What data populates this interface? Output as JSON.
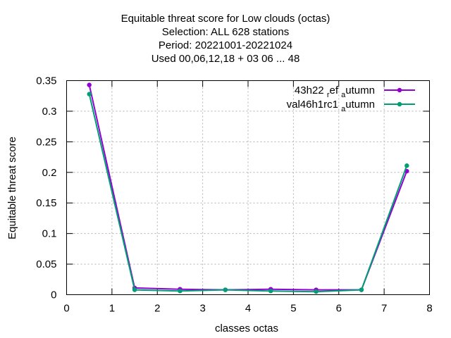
{
  "chart_data": {
    "type": "line",
    "title_lines": [
      "Equitable threat score  for Low clouds (octas)",
      "Selection: ALL     628 stations",
      "Period: 20221001-20221024",
      "Used  00,06,12,18  + 03 06 ... 48"
    ],
    "xlabel": "classes octas",
    "ylabel": "Equitable threat score",
    "xlim": [
      0,
      8
    ],
    "ylim": [
      0,
      0.35
    ],
    "x_ticks": [
      "0",
      "1",
      "2",
      "3",
      "4",
      "5",
      "6",
      "7",
      "8"
    ],
    "y_ticks": [
      "0",
      "0.05",
      "0.1",
      "0.15",
      "0.2",
      "0.25",
      "0.3",
      "0.35"
    ],
    "grid": true,
    "legend_position": "top-right",
    "x": [
      0.5,
      1.5,
      2.5,
      3.5,
      4.5,
      5.5,
      6.5,
      7.5
    ],
    "series": [
      {
        "name": "43h22 ref autumn",
        "legend_parts": [
          "43h22 ",
          "r",
          "ef ",
          "a",
          "utumn"
        ],
        "color": "#9400d3",
        "values": [
          0.343,
          0.011,
          0.009,
          0.008,
          0.009,
          0.008,
          0.008,
          0.202
        ]
      },
      {
        "name": "val46h1rc1 autumn",
        "legend_parts": [
          "val46h1rc1 ",
          "a",
          "utumn"
        ],
        "color": "#009e73",
        "values": [
          0.328,
          0.008,
          0.006,
          0.008,
          0.006,
          0.005,
          0.008,
          0.211
        ]
      }
    ]
  }
}
